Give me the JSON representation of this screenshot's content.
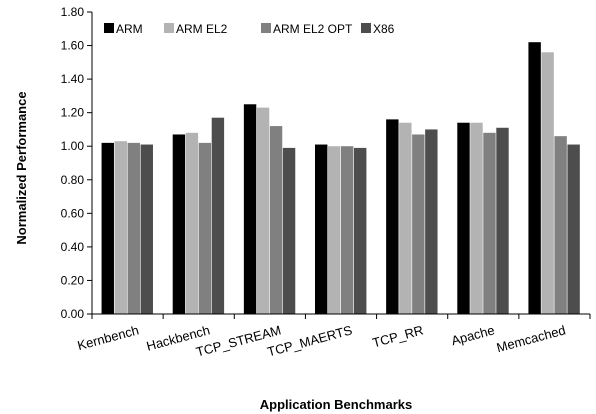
{
  "chart_data": {
    "type": "bar",
    "title": "",
    "xlabel": "Application Benchmarks",
    "ylabel": "Normalized Performance",
    "ylim": [
      0,
      1.8
    ],
    "ytick_step": 0.2,
    "grid": false,
    "legend_position": "top-left",
    "categories": [
      "Kernbench",
      "Hackbench",
      "TCP_STREAM",
      "TCP_MAERTS",
      "TCP_RR",
      "Apache",
      "Memcached"
    ],
    "series": [
      {
        "name": "ARM",
        "color": "#000000",
        "values": [
          1.02,
          1.07,
          1.25,
          1.01,
          1.16,
          1.14,
          1.62
        ]
      },
      {
        "name": "ARM EL2",
        "color": "#b3b3b3",
        "values": [
          1.03,
          1.08,
          1.23,
          1.0,
          1.14,
          1.14,
          1.56
        ]
      },
      {
        "name": "ARM EL2 OPT",
        "color": "#808080",
        "values": [
          1.02,
          1.02,
          1.12,
          1.0,
          1.07,
          1.08,
          1.06
        ]
      },
      {
        "name": "X86",
        "color": "#4d4d4d",
        "values": [
          1.01,
          1.17,
          0.99,
          0.99,
          1.1,
          1.11,
          1.01
        ]
      }
    ]
  }
}
